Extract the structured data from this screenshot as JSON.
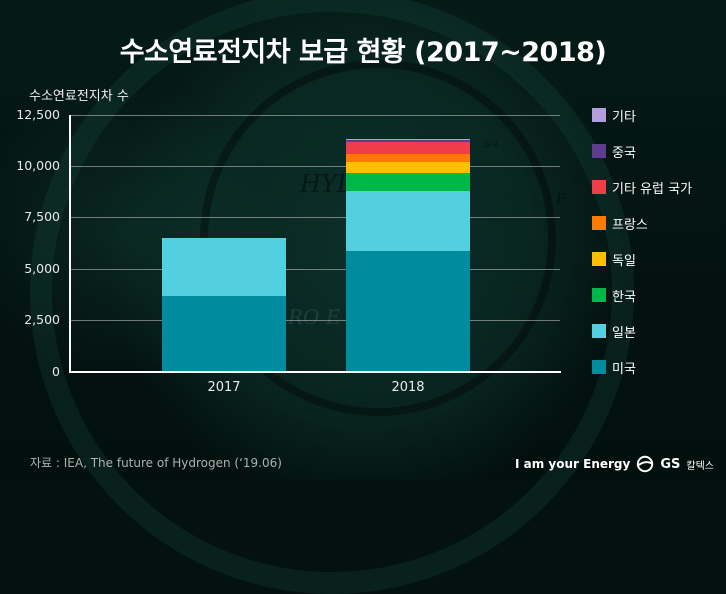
{
  "header": {
    "title": "수소연료전지차 보급 현황 (2017~2018)"
  },
  "axis": {
    "ylabel": "수소연료전지차 수",
    "yticks": [
      "12,500",
      "10,000",
      "7,500",
      "5,000",
      "2,500",
      "0"
    ],
    "xticks": [
      "2017",
      "2018"
    ]
  },
  "legend": [
    {
      "label": "기타",
      "color": "#b39ddb"
    },
    {
      "label": "중국",
      "color": "#5e3c8f"
    },
    {
      "label": "기타 유럽 국가",
      "color": "#ef3e4a"
    },
    {
      "label": "프랑스",
      "color": "#ff7a00"
    },
    {
      "label": "독일",
      "color": "#ffbf00"
    },
    {
      "label": "한국",
      "color": "#00b74a"
    },
    {
      "label": "일본",
      "color": "#52d0e0"
    },
    {
      "label": "미국",
      "color": "#008b9e"
    }
  ],
  "chart_data": {
    "type": "bar",
    "stacked": true,
    "title": "수소연료전지차 보급 현황 (2017~2018)",
    "xlabel": "",
    "ylabel": "수소연료전지차 수",
    "ylim": [
      0,
      12500
    ],
    "yticks": [
      0,
      2500,
      5000,
      7500,
      10000,
      12500
    ],
    "grid": true,
    "legend_position": "right",
    "categories": [
      "2017",
      "2018"
    ],
    "series": [
      {
        "name": "미국",
        "color": "#008b9e",
        "values": [
          3700,
          5900
        ]
      },
      {
        "name": "일본",
        "color": "#52d0e0",
        "values": [
          2800,
          2900
        ]
      },
      {
        "name": "한국",
        "color": "#00b74a",
        "values": [
          0,
          900
        ]
      },
      {
        "name": "독일",
        "color": "#ffbf00",
        "values": [
          0,
          500
        ]
      },
      {
        "name": "프랑스",
        "color": "#ff7a00",
        "values": [
          0,
          400
        ]
      },
      {
        "name": "기타 유럽 국가",
        "color": "#ef3e4a",
        "values": [
          0,
          600
        ]
      },
      {
        "name": "중국",
        "color": "#5e3c8f",
        "values": [
          0,
          70
        ]
      },
      {
        "name": "기타",
        "color": "#b39ddb",
        "values": [
          0,
          70
        ]
      }
    ]
  },
  "footer": {
    "source": "자료 : IEA, The future of Hydrogen (‘19.06)",
    "slogan": "I am your Energy",
    "brand": "GS",
    "brand_kr": "칼텍스"
  },
  "watermark": {
    "text1": "HYD",
    "text2": "RO E",
    "gauge_mark": "3/4",
    "gauge_f": "F",
    "gauge_e": "E",
    "gauge_quarter": "1/4"
  }
}
